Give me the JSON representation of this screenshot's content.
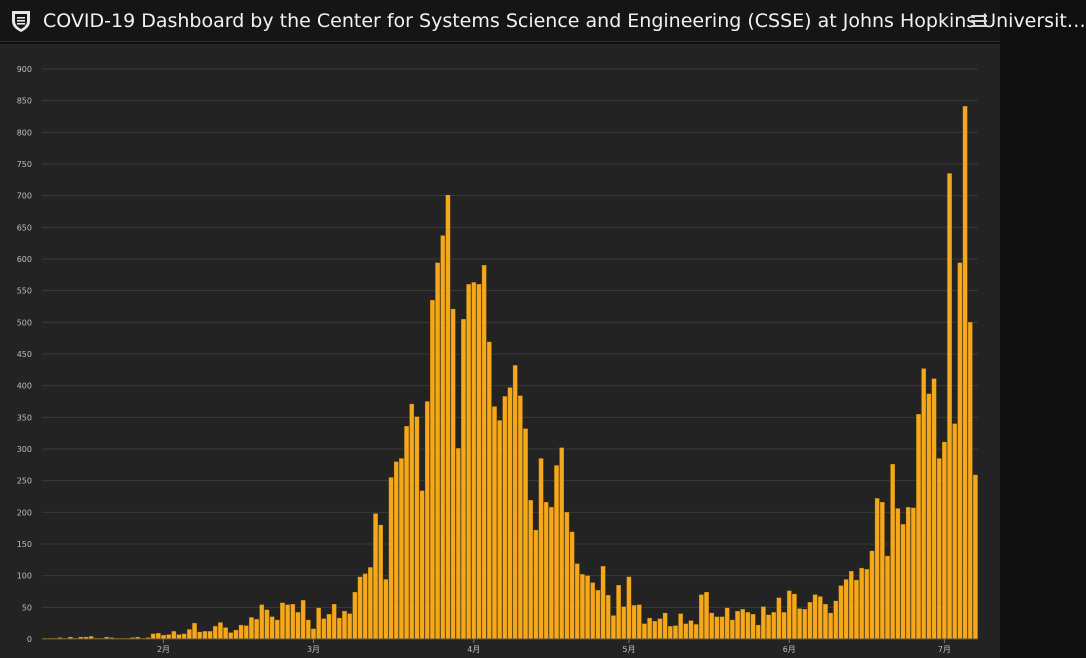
{
  "header": {
    "title": "COVID-19 Dashboard by the Center for Systems Science and Engineering (CSSE) at Johns Hopkins Universit…",
    "logo_icon": "university-shield-icon",
    "menu_icon": "hamburger-menu-icon"
  },
  "colors": {
    "bar": "#f5a81b",
    "bar_edge": "#c9870a",
    "grid": "#3a3a3a",
    "background": "#232323"
  },
  "chart_data": {
    "type": "bar",
    "title": "",
    "xlabel": "",
    "ylabel": "",
    "ylim": [
      0,
      900
    ],
    "yticks": [
      0,
      50,
      100,
      150,
      200,
      250,
      300,
      350,
      400,
      450,
      500,
      550,
      600,
      650,
      700,
      750,
      800,
      850,
      900
    ],
    "grid": true,
    "x_tick_labels": [
      {
        "label": "2月",
        "index": 23
      },
      {
        "label": "3月",
        "index": 52
      },
      {
        "label": "4月",
        "index": 83
      },
      {
        "label": "5月",
        "index": 113
      },
      {
        "label": "6月",
        "index": 144
      },
      {
        "label": "7月",
        "index": 174
      }
    ],
    "values": [
      1,
      1,
      1,
      2,
      1,
      3,
      1,
      3,
      3,
      4,
      1,
      1,
      3,
      2,
      1,
      1,
      1,
      2,
      3,
      1,
      2,
      8,
      9,
      6,
      7,
      12,
      7,
      8,
      15,
      25,
      11,
      12,
      12,
      20,
      26,
      18,
      10,
      14,
      22,
      21,
      34,
      31,
      54,
      46,
      35,
      30,
      57,
      54,
      55,
      42,
      61,
      30,
      16,
      49,
      32,
      39,
      55,
      33,
      44,
      40,
      74,
      98,
      103,
      113,
      198,
      180,
      94,
      255,
      280,
      285,
      336,
      371,
      351,
      234,
      375,
      535,
      594,
      637,
      701,
      521,
      301,
      505,
      560,
      563,
      560,
      590,
      469,
      367,
      345,
      383,
      397,
      432,
      384,
      332,
      219,
      172,
      285,
      216,
      208,
      274,
      302,
      200,
      169,
      119,
      102,
      100,
      89,
      77,
      115,
      69,
      37,
      85,
      51,
      98,
      53,
      54,
      24,
      33,
      28,
      32,
      41,
      20,
      21,
      40,
      24,
      29,
      23,
      70,
      74,
      41,
      35,
      35,
      49,
      30,
      44,
      47,
      42,
      39,
      22,
      51,
      38,
      42,
      65,
      42,
      76,
      71,
      48,
      47,
      58,
      70,
      67,
      55,
      41,
      60,
      84,
      94,
      107,
      93,
      112,
      110,
      139,
      222,
      216,
      131,
      276,
      206,
      181,
      208,
      207,
      355,
      427,
      387,
      411,
      285,
      311,
      735,
      340,
      594,
      841,
      500,
      259
    ]
  }
}
